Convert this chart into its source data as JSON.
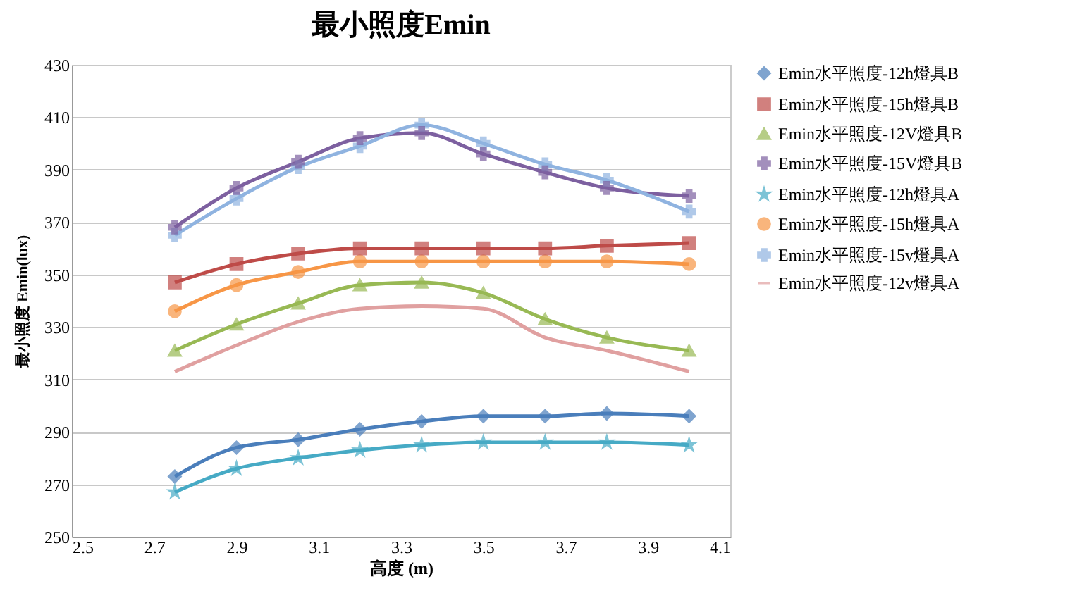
{
  "chart_data": {
    "type": "line",
    "title": "最小照度Emin",
    "xlabel": "高度 (m)",
    "ylabel": "最小照度 Emin(lux)",
    "x": [
      2.75,
      2.9,
      3.05,
      3.2,
      3.35,
      3.5,
      3.65,
      3.8,
      4.0
    ],
    "xlim": [
      2.5,
      4.1
    ],
    "xticks": [
      2.5,
      2.7,
      2.9,
      3.1,
      3.3,
      3.5,
      3.7,
      3.9,
      4.1
    ],
    "ylim": [
      250,
      430
    ],
    "yticks": [
      250,
      270,
      290,
      310,
      330,
      350,
      370,
      390,
      410,
      430
    ],
    "grid": "y",
    "legend": "right",
    "series": [
      {
        "name": "Emin水平照度-12h燈具B",
        "color": "#4a7ebb",
        "marker": "diamond",
        "values": [
          273,
          284,
          287,
          291,
          294,
          296,
          296,
          297,
          296
        ]
      },
      {
        "name": "Emin水平照度-15h燈具B",
        "color": "#be4b48",
        "marker": "square",
        "values": [
          347,
          354,
          358,
          360,
          360,
          360,
          360,
          361,
          362
        ]
      },
      {
        "name": "Emin水平照度-12V燈具B",
        "color": "#98b954",
        "marker": "triangle",
        "values": [
          321,
          331,
          339,
          346,
          347,
          343,
          333,
          326,
          321
        ]
      },
      {
        "name": "Emin水平照度-15V燈具B",
        "color": "#7d60a0",
        "marker": "cross",
        "values": [
          368,
          383,
          393,
          402,
          404,
          396,
          389,
          383,
          380
        ]
      },
      {
        "name": "Emin水平照度-12h燈具A",
        "color": "#46aac5",
        "marker": "star",
        "values": [
          267,
          276,
          280,
          283,
          285,
          286,
          286,
          286,
          285
        ]
      },
      {
        "name": "Emin水平照度-15h燈具A",
        "color": "#f79646",
        "marker": "circle",
        "values": [
          336,
          346,
          351,
          355,
          355,
          355,
          355,
          355,
          354
        ]
      },
      {
        "name": "Emin水平照度-15v燈具A",
        "color": "#8fb3e0",
        "marker": "cross",
        "values": [
          365,
          379,
          391,
          399,
          407,
          400,
          392,
          386,
          374
        ]
      },
      {
        "name": "Emin水平照度-12v燈具A",
        "color": "#e0a0a0",
        "marker": "none",
        "values": [
          313,
          323,
          332,
          337,
          338,
          337,
          326,
          321,
          313
        ]
      }
    ]
  }
}
